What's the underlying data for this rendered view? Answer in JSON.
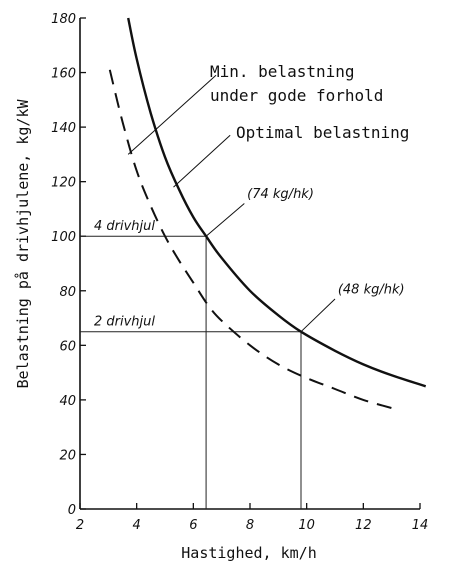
{
  "chart_data": {
    "type": "line",
    "xlabel": "Hastighed, km/h",
    "ylabel": "Belastning på drivhjulene, kg/kW",
    "xlim": [
      2,
      14
    ],
    "ylim": [
      0,
      180
    ],
    "xticks": [
      2,
      4,
      6,
      8,
      10,
      12,
      14
    ],
    "yticks": [
      0,
      20,
      40,
      60,
      80,
      100,
      120,
      140,
      160,
      180
    ],
    "grid": false,
    "series": [
      {
        "name": "Optimal belastning",
        "style": "solid",
        "x": [
          3.7,
          4.0,
          4.5,
          5.0,
          5.5,
          6.0,
          6.45,
          7.0,
          8.0,
          9.0,
          9.8,
          11.0,
          12.0,
          13.0,
          14.2
        ],
        "y": [
          180,
          165,
          145,
          129,
          117,
          107,
          100,
          92,
          80,
          71,
          65,
          58,
          53,
          49,
          45
        ]
      },
      {
        "name": "Min. belastning under gode forhold",
        "style": "dashed",
        "x": [
          3.05,
          3.5,
          4.0,
          4.5,
          5.0,
          5.5,
          6.0,
          6.5,
          7.0,
          8.0,
          9.0,
          10.0,
          11.0,
          12.0,
          13.0
        ],
        "y": [
          161,
          142,
          124,
          111,
          100,
          91,
          83,
          75,
          69,
          60,
          53,
          48,
          44,
          40,
          37
        ]
      }
    ],
    "reference_lines": [
      {
        "label": "4 drivhjul",
        "x": 6.45,
        "y": 100,
        "point_label": "(74 kg/hk)"
      },
      {
        "label": "2 drivhjul",
        "x": 9.8,
        "y": 65,
        "point_label": "(48 kg/hk)"
      }
    ],
    "annotations": [
      {
        "text_lines": [
          "Min. belastning",
          "under gode forhold"
        ],
        "series": "Min. belastning under gode forhold"
      },
      {
        "text_lines": [
          "Optimal belastning"
        ],
        "series": "Optimal belastning"
      }
    ]
  }
}
